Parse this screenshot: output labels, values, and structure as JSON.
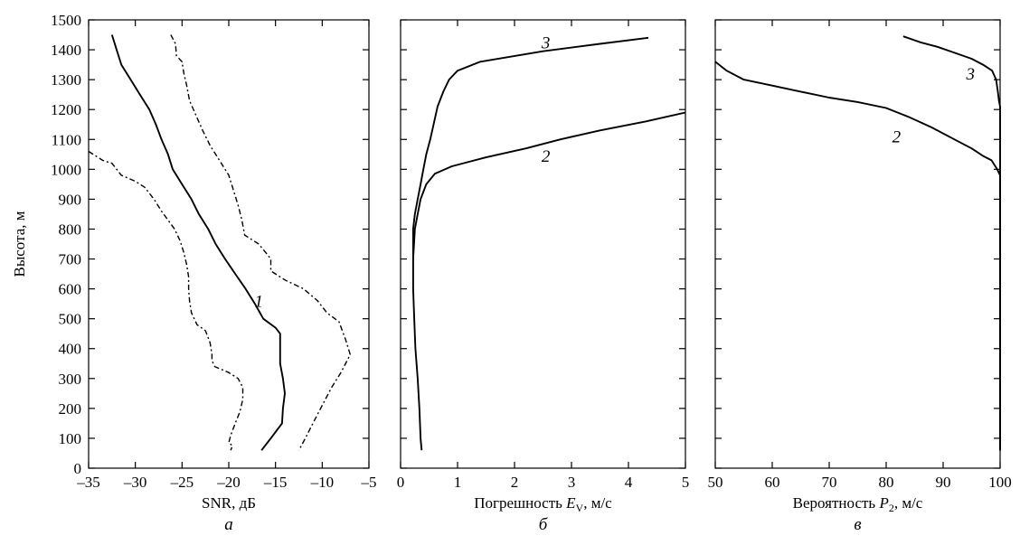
{
  "chart_data": [
    {
      "type": "line",
      "panel_letter": "а",
      "xlabel": "SNR, дБ",
      "ylabel": "Высота, м",
      "xlim": [
        -35,
        -5
      ],
      "ylim": [
        0,
        1500
      ],
      "x_ticks": [
        -35,
        -30,
        -25,
        -20,
        -15,
        -10,
        -5
      ],
      "x_tick_labels": [
        "–35",
        "–30",
        "–25",
        "–20",
        "–15",
        "–10",
        "–5"
      ],
      "y_ticks": [
        0,
        100,
        200,
        300,
        400,
        500,
        600,
        700,
        800,
        900,
        1000,
        1100,
        1200,
        1300,
        1400,
        1500
      ],
      "series": [
        {
          "name": "1",
          "style": "solid",
          "label_at": [
            -16.8,
            540
          ],
          "points": [
            [
              -32.5,
              1450
            ],
            [
              -32,
              1400
            ],
            [
              -31.5,
              1350
            ],
            [
              -30.5,
              1300
            ],
            [
              -29.5,
              1250
            ],
            [
              -28.5,
              1200
            ],
            [
              -27.8,
              1150
            ],
            [
              -27.2,
              1100
            ],
            [
              -26.5,
              1050
            ],
            [
              -26,
              1000
            ],
            [
              -25,
              950
            ],
            [
              -24,
              900
            ],
            [
              -23.2,
              850
            ],
            [
              -22.2,
              800
            ],
            [
              -21.4,
              750
            ],
            [
              -20.4,
              700
            ],
            [
              -19.3,
              650
            ],
            [
              -18.2,
              600
            ],
            [
              -17.2,
              550
            ],
            [
              -16.3,
              500
            ],
            [
              -15,
              470
            ],
            [
              -14.5,
              450
            ],
            [
              -14.5,
              400
            ],
            [
              -14.5,
              350
            ],
            [
              -14.2,
              300
            ],
            [
              -14,
              250
            ],
            [
              -14.2,
              200
            ],
            [
              -14.3,
              150
            ],
            [
              -15.5,
              100
            ],
            [
              -16.5,
              60
            ]
          ]
        },
        {
          "name": "",
          "style": "dashed",
          "points": [
            [
              -26.2,
              1450
            ],
            [
              -25.7,
              1420
            ],
            [
              -25.6,
              1380
            ],
            [
              -25,
              1360
            ],
            [
              -24.8,
              1320
            ],
            [
              -24.5,
              1280
            ],
            [
              -24.2,
              1230
            ],
            [
              -23.5,
              1180
            ],
            [
              -22.8,
              1130
            ],
            [
              -22,
              1080
            ],
            [
              -21,
              1030
            ],
            [
              -20,
              980
            ],
            [
              -19.5,
              930
            ],
            [
              -19,
              880
            ],
            [
              -18.6,
              830
            ],
            [
              -18.3,
              780
            ],
            [
              -16.8,
              750
            ],
            [
              -16,
              720
            ],
            [
              -15.5,
              700
            ],
            [
              -15.5,
              660
            ],
            [
              -14,
              630
            ],
            [
              -12,
              600
            ],
            [
              -10.5,
              560
            ],
            [
              -9.5,
              520
            ],
            [
              -8.2,
              490
            ],
            [
              -7.5,
              430
            ],
            [
              -7,
              380
            ],
            [
              -8,
              320
            ],
            [
              -9,
              270
            ],
            [
              -10,
              210
            ],
            [
              -11,
              150
            ],
            [
              -11.8,
              100
            ],
            [
              -12.5,
              60
            ]
          ]
        },
        {
          "name": "",
          "style": "dashed",
          "points": [
            [
              -35,
              1060
            ],
            [
              -33.5,
              1030
            ],
            [
              -32.5,
              1020
            ],
            [
              -32,
              1000
            ],
            [
              -31.5,
              980
            ],
            [
              -30,
              960
            ],
            [
              -29,
              940
            ],
            [
              -28,
              900
            ],
            [
              -27.2,
              860
            ],
            [
              -26.5,
              830
            ],
            [
              -25.8,
              800
            ],
            [
              -25.2,
              760
            ],
            [
              -24.8,
              720
            ],
            [
              -24.5,
              680
            ],
            [
              -24.3,
              640
            ],
            [
              -24.3,
              600
            ],
            [
              -24.2,
              560
            ],
            [
              -24,
              520
            ],
            [
              -23.4,
              480
            ],
            [
              -22.5,
              460
            ],
            [
              -22,
              420
            ],
            [
              -21.8,
              380
            ],
            [
              -21.8,
              360
            ],
            [
              -21.5,
              340
            ],
            [
              -20,
              320
            ],
            [
              -19,
              300
            ],
            [
              -18.5,
              270
            ],
            [
              -18.5,
              230
            ],
            [
              -18.8,
              190
            ],
            [
              -19.3,
              150
            ],
            [
              -19.8,
              110
            ],
            [
              -20,
              85
            ],
            [
              -19.6,
              75
            ],
            [
              -19.8,
              60
            ]
          ]
        }
      ]
    },
    {
      "type": "line",
      "panel_letter": "б",
      "xlabel": "Погрешность E_V, м/с",
      "xlabel_main": "Погрешность ",
      "xlabel_var": "E",
      "xlabel_sub": "V",
      "xlabel_unit": ", м/с",
      "xlim": [
        0,
        5
      ],
      "ylim": [
        0,
        1500
      ],
      "x_ticks": [
        0,
        1,
        2,
        3,
        4,
        5
      ],
      "x_tick_labels": [
        "0",
        "1",
        "2",
        "3",
        "4",
        "5"
      ],
      "series": [
        {
          "name": "2",
          "style": "solid",
          "label_at": [
            2.55,
            1025
          ],
          "points": [
            [
              5,
              1190
            ],
            [
              4.3,
              1160
            ],
            [
              3.5,
              1130
            ],
            [
              2.8,
              1100
            ],
            [
              2.2,
              1070
            ],
            [
              1.5,
              1040
            ],
            [
              0.9,
              1010
            ],
            [
              0.6,
              985
            ],
            [
              0.45,
              950
            ],
            [
              0.35,
              900
            ],
            [
              0.3,
              850
            ],
            [
              0.25,
              800
            ],
            [
              0.22,
              700
            ],
            [
              0.22,
              600
            ],
            [
              0.24,
              500
            ],
            [
              0.26,
              400
            ],
            [
              0.3,
              300
            ],
            [
              0.33,
              200
            ],
            [
              0.35,
              100
            ],
            [
              0.37,
              60
            ]
          ]
        },
        {
          "name": "3",
          "style": "solid",
          "label_at": [
            2.55,
            1405
          ],
          "points": [
            [
              4.35,
              1440
            ],
            [
              3.5,
              1420
            ],
            [
              2.5,
              1395
            ],
            [
              1.4,
              1360
            ],
            [
              1.2,
              1345
            ],
            [
              1,
              1330
            ],
            [
              0.85,
              1300
            ],
            [
              0.75,
              1260
            ],
            [
              0.65,
              1210
            ],
            [
              0.58,
              1150
            ],
            [
              0.52,
              1100
            ],
            [
              0.45,
              1050
            ],
            [
              0.4,
              1000
            ],
            [
              0.35,
              950
            ],
            [
              0.3,
              900
            ],
            [
              0.25,
              850
            ],
            [
              0.22,
              800
            ],
            [
              0.22,
              700
            ]
          ]
        }
      ]
    },
    {
      "type": "line",
      "panel_letter": "в",
      "xlabel": "Вероятность P₂, м/с",
      "xlabel_main": "Вероятность ",
      "xlabel_var": "P",
      "xlabel_sub": "2",
      "xlabel_unit": ", м/с",
      "xlim": [
        50,
        100
      ],
      "ylim": [
        0,
        1500
      ],
      "x_ticks": [
        50,
        60,
        70,
        80,
        90,
        100
      ],
      "x_tick_labels": [
        "50",
        "60",
        "70",
        "80",
        "90",
        "100"
      ],
      "series": [
        {
          "name": "2",
          "style": "solid",
          "label_at": [
            81.8,
            1090
          ],
          "points": [
            [
              50,
              1360
            ],
            [
              52,
              1330
            ],
            [
              55,
              1300
            ],
            [
              60,
              1280
            ],
            [
              65,
              1260
            ],
            [
              70,
              1240
            ],
            [
              75,
              1225
            ],
            [
              80,
              1205
            ],
            [
              84,
              1175
            ],
            [
              88,
              1140
            ],
            [
              92,
              1100
            ],
            [
              95,
              1070
            ],
            [
              97,
              1045
            ],
            [
              98.5,
              1030
            ],
            [
              99.5,
              1000
            ],
            [
              100,
              980
            ],
            [
              100,
              900
            ],
            [
              100,
              700
            ],
            [
              100,
              500
            ],
            [
              100,
              300
            ],
            [
              100,
              100
            ],
            [
              100,
              60
            ]
          ]
        },
        {
          "name": "3",
          "style": "solid",
          "label_at": [
            94.8,
            1300
          ],
          "points": [
            [
              83,
              1445
            ],
            [
              86,
              1425
            ],
            [
              89,
              1410
            ],
            [
              92,
              1390
            ],
            [
              95,
              1370
            ],
            [
              97,
              1350
            ],
            [
              98.6,
              1330
            ],
            [
              99.3,
              1300
            ],
            [
              99.6,
              1260
            ],
            [
              99.8,
              1230
            ],
            [
              100,
              1210
            ],
            [
              100,
              1000
            ],
            [
              100,
              800
            ],
            [
              100,
              600
            ],
            [
              100,
              400
            ],
            [
              100,
              200
            ],
            [
              100,
              60
            ]
          ]
        }
      ]
    }
  ]
}
